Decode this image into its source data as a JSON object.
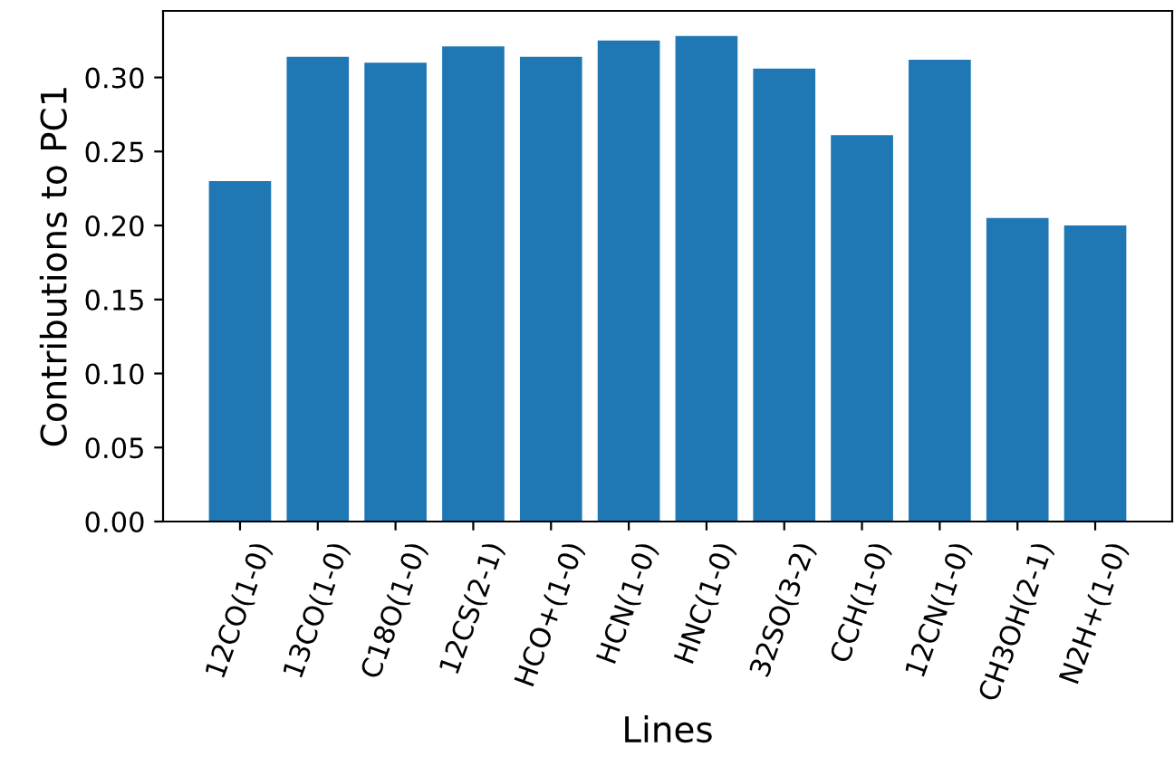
{
  "chart_data": {
    "type": "bar",
    "xlabel": "Lines",
    "ylabel": "Contributions to PC1",
    "categories": [
      "12CO(1-0)",
      "13CO(1-0)",
      "C18O(1-0)",
      "12CS(2-1)",
      "HCO+(1-0)",
      "HCN(1-0)",
      "HNC(1-0)",
      "32SO(3-2)",
      "CCH(1-0)",
      "12CN(1-0)",
      "CH3OH(2-1)",
      "N2H+(1-0)"
    ],
    "values": [
      0.23,
      0.314,
      0.31,
      0.321,
      0.314,
      0.325,
      0.328,
      0.306,
      0.261,
      0.312,
      0.205,
      0.2
    ],
    "color": "#1f77b4",
    "ylim": [
      0,
      0.345
    ],
    "yticks": [
      {
        "value": 0,
        "label": "0.00"
      },
      {
        "value": 0.05,
        "label": "0.05"
      },
      {
        "value": 0.1,
        "label": "0.10"
      },
      {
        "value": 0.15,
        "label": "0.15"
      },
      {
        "value": 0.2,
        "label": "0.20"
      },
      {
        "value": 0.25,
        "label": "0.25"
      },
      {
        "value": 0.3,
        "label": "0.30"
      }
    ],
    "grid": false,
    "legend": false
  }
}
